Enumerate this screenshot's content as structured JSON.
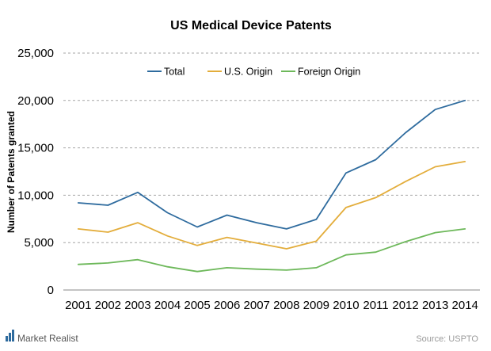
{
  "chart_data": {
    "type": "line",
    "title": "US Medical  Device  Patents",
    "ylabel": "Number of Patents granted",
    "xlabel": "",
    "categories": [
      "2001",
      "2002",
      "2003",
      "2004",
      "2005",
      "2006",
      "2007",
      "2008",
      "2009",
      "2010",
      "2011",
      "2012",
      "2013",
      "2014"
    ],
    "ylim": [
      0,
      25000
    ],
    "yticks": [
      0,
      5000,
      10000,
      15000,
      20000,
      25000
    ],
    "ytick_labels": [
      "0",
      "5,000",
      "10,000",
      "15,000",
      "20,000",
      "25,000"
    ],
    "grid": true,
    "legend_position": "top",
    "series": [
      {
        "name": "Total",
        "color": "#2e6b9e",
        "values": [
          9200,
          8950,
          10300,
          8150,
          6650,
          7900,
          7100,
          6450,
          7450,
          12350,
          13750,
          16600,
          19050,
          20000
        ]
      },
      {
        "name": "U.S. Origin",
        "color": "#e3ad3b",
        "values": [
          6450,
          6100,
          7100,
          5700,
          4700,
          5550,
          4950,
          4350,
          5150,
          8700,
          9750,
          11450,
          13000,
          13550
        ]
      },
      {
        "name": "Foreign Origin",
        "color": "#6db85a",
        "values": [
          2700,
          2850,
          3200,
          2450,
          1950,
          2350,
          2200,
          2100,
          2350,
          3700,
          4000,
          5100,
          6050,
          6450
        ]
      }
    ]
  },
  "footer": {
    "brand": "Market Realist",
    "source": "Source: USPTO",
    "brand_color": "#2e6b9e"
  }
}
